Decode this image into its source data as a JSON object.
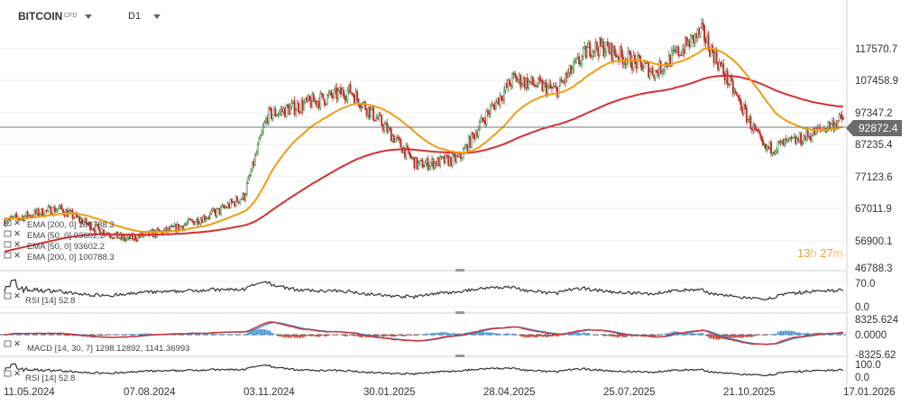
{
  "header": {
    "symbol": "BITCOIN",
    "instrument_type": "CFD",
    "timeframe": "D1"
  },
  "last_price": "92872.4",
  "candle_timer": {
    "hours": "13",
    "h": "h",
    "minutes": "27",
    "m": "m"
  },
  "colors": {
    "ema_fast": "#f39c12",
    "ema_slow": "#d63031",
    "bull": "#2e7d32",
    "bear": "#c62828",
    "macd_line": "#d63031",
    "signal_line": "#3a8fd8",
    "hist_pos": "#3a8fd8",
    "hist_neg": "#c0392b",
    "rsi": "#333333"
  },
  "legends": {
    "main": [
      {
        "text": "EMA  [200, 0]  100788.3"
      },
      {
        "text": "EMA  [50, 0]  93602.2"
      },
      {
        "text": "EMA  [50, 0]  93602.2"
      },
      {
        "text": "EMA  [200, 0]  100788.3"
      }
    ],
    "rsi1": "RSI  [14]  52.8",
    "macd": "MACD  [14, 30, 7]  1298.12892,   1141.36993",
    "rsi2": "RSI  [14]  52.8"
  },
  "axes": {
    "price_ticks": [
      "117570.7",
      "107458.9",
      "97347.2",
      "87235.4",
      "77123.6",
      "67011.9",
      "56900.1",
      "46788.3"
    ],
    "rsi1_ticks": [
      "70.0",
      "0.0"
    ],
    "macd_ticks": [
      "8325.624",
      "0.0000",
      "-8325.62"
    ],
    "rsi2_ticks": [
      "100.0",
      "0.0"
    ],
    "date_ticks": [
      "11.05.2024",
      "07.08.2024",
      "03.11.2024",
      "30.01.2025",
      "28.04.2025",
      "25.07.2025",
      "21.10.2025",
      "17.01.2026"
    ]
  },
  "chart_data": {
    "type": "candlestick",
    "instrument": "BITCOIN",
    "x_range": [
      "11.05.2024",
      "17.01.2026"
    ],
    "y_range": [
      46788.3,
      125000
    ],
    "close_path_keypoints": [
      [
        "11.05.2024",
        62000
      ],
      [
        "20.06.2024",
        66000
      ],
      [
        "15.07.2024",
        60000
      ],
      [
        "07.08.2024",
        56000
      ],
      [
        "10.09.2024",
        59000
      ],
      [
        "15.10.2024",
        65000
      ],
      [
        "03.11.2024",
        70000
      ],
      [
        "20.11.2024",
        96000
      ],
      [
        "20.12.2024",
        100000
      ],
      [
        "20.01.2025",
        104000
      ],
      [
        "15.02.2025",
        92000
      ],
      [
        "10.03.2025",
        80000
      ],
      [
        "10.04.2025",
        82000
      ],
      [
        "28.04.2025",
        95000
      ],
      [
        "20.05.2025",
        108000
      ],
      [
        "20.06.2025",
        104000
      ],
      [
        "15.07.2025",
        118000
      ],
      [
        "25.07.2025",
        118000
      ],
      [
        "01.09.2025",
        110000
      ],
      [
        "05.10.2025",
        123000
      ],
      [
        "21.10.2025",
        110000
      ],
      [
        "20.11.2025",
        85000
      ],
      [
        "15.12.2025",
        88000
      ],
      [
        "17.01.2026",
        95000
      ]
    ],
    "ema_50_last": 93602.2,
    "ema_200_last": 100788.3,
    "rsi_14_last": 52.8,
    "macd": {
      "params": [
        14,
        30,
        7
      ],
      "macd_last": 1298.12892,
      "signal_last": 1141.36993
    }
  }
}
